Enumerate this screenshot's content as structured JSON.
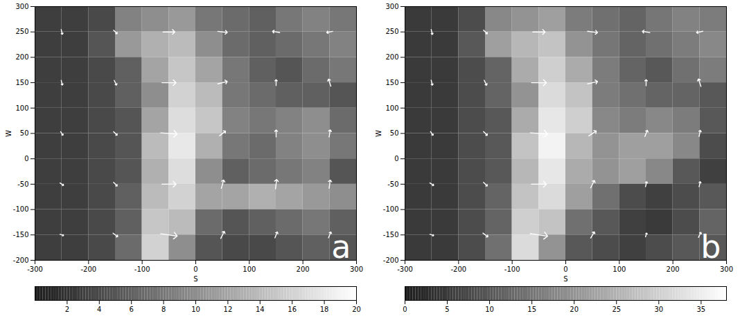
{
  "chart_data": [
    {
      "type": "heatmap",
      "panel": "a",
      "x_label": "S",
      "y_label": "W",
      "xlim": [
        -300,
        300
      ],
      "ylim": [
        -200,
        300
      ],
      "xticks": [
        -300,
        -200,
        -100,
        0,
        100,
        200,
        300
      ],
      "yticks": [
        -200,
        -150,
        -100,
        -50,
        0,
        50,
        100,
        150,
        200,
        250,
        300
      ],
      "cells": {
        "x": [
          -275,
          -225,
          -175,
          -125,
          -75,
          -25,
          25,
          75,
          125,
          175,
          225,
          275
        ],
        "y": [
          275,
          225,
          175,
          125,
          75,
          25,
          -25,
          -75,
          -125,
          -175
        ],
        "values": [
          [
            3,
            3,
            4,
            9,
            10,
            11,
            8,
            7,
            6,
            8,
            9,
            8
          ],
          [
            3,
            3,
            5,
            11,
            13,
            14,
            10,
            7,
            6,
            7,
            8,
            9
          ],
          [
            3,
            3,
            4,
            6,
            12,
            15,
            12,
            8,
            6,
            5,
            7,
            8
          ],
          [
            3,
            3,
            4,
            6,
            10,
            16,
            14,
            8,
            7,
            6,
            6,
            5
          ],
          [
            3,
            3,
            4,
            5,
            12,
            17,
            15,
            9,
            8,
            9,
            10,
            7
          ],
          [
            3,
            3,
            4,
            5,
            14,
            18,
            13,
            8,
            7,
            9,
            10,
            8
          ],
          [
            3,
            3,
            4,
            5,
            13,
            17,
            10,
            6,
            7,
            8,
            9,
            5
          ],
          [
            3,
            3,
            4,
            6,
            14,
            16,
            12,
            12,
            13,
            12,
            11,
            10
          ],
          [
            3,
            3,
            4,
            6,
            15,
            14,
            7,
            5,
            6,
            7,
            8,
            6
          ],
          [
            3,
            3,
            4,
            7,
            16,
            10,
            5,
            4,
            4,
            5,
            6,
            5
          ]
        ]
      },
      "vectors": {
        "color": "#ffffff",
        "x": [
          -250,
          -150,
          -50,
          50,
          150,
          250
        ],
        "y": [
          250,
          150,
          50,
          -50,
          -150
        ],
        "u": [
          [
            1,
            3,
            10,
            8,
            -6,
            -5
          ],
          [
            1,
            2,
            12,
            8,
            0,
            -2
          ],
          [
            2,
            3,
            14,
            5,
            0,
            1
          ],
          [
            3,
            3,
            12,
            2,
            1,
            1
          ],
          [
            3,
            4,
            14,
            3,
            2,
            2
          ]
        ],
        "v": [
          [
            -4,
            -3,
            0,
            -1,
            1,
            -1
          ],
          [
            -4,
            -4,
            0,
            2,
            5,
            6
          ],
          [
            -3,
            -3,
            -1,
            4,
            6,
            6
          ],
          [
            -2,
            -3,
            0,
            7,
            8,
            7
          ],
          [
            -1,
            -3,
            -2,
            6,
            5,
            5
          ]
        ]
      },
      "colorbar": {
        "lim": [
          0,
          20
        ],
        "ticks": [
          2,
          4,
          6,
          8,
          10,
          12,
          14,
          16,
          18,
          20
        ]
      }
    },
    {
      "type": "heatmap",
      "panel": "b",
      "x_label": "S",
      "y_label": "W",
      "xlim": [
        -300,
        300
      ],
      "ylim": [
        -200,
        300
      ],
      "xticks": [
        -300,
        -200,
        -100,
        0,
        100,
        200,
        300
      ],
      "yticks": [
        -200,
        -150,
        -100,
        -50,
        0,
        50,
        100,
        150,
        200,
        250,
        300
      ],
      "cells": {
        "x": [
          -275,
          -225,
          -175,
          -125,
          -75,
          -25,
          25,
          75,
          125,
          175,
          225,
          275
        ],
        "y": [
          275,
          225,
          175,
          125,
          75,
          25,
          -25,
          -75,
          -125,
          -175
        ],
        "values": [
          [
            5,
            5,
            8,
            18,
            20,
            22,
            16,
            14,
            12,
            15,
            17,
            16
          ],
          [
            5,
            5,
            10,
            22,
            26,
            28,
            20,
            15,
            12,
            14,
            16,
            18
          ],
          [
            5,
            5,
            8,
            12,
            24,
            30,
            24,
            16,
            12,
            10,
            14,
            16
          ],
          [
            5,
            5,
            8,
            12,
            20,
            32,
            28,
            16,
            14,
            12,
            12,
            10
          ],
          [
            5,
            5,
            8,
            10,
            24,
            34,
            30,
            18,
            16,
            18,
            16,
            10
          ],
          [
            5,
            5,
            8,
            10,
            28,
            36,
            26,
            20,
            22,
            22,
            18,
            8
          ],
          [
            5,
            5,
            8,
            10,
            26,
            34,
            24,
            20,
            22,
            18,
            10,
            6
          ],
          [
            5,
            5,
            8,
            12,
            28,
            32,
            22,
            14,
            8,
            6,
            8,
            10
          ],
          [
            5,
            5,
            8,
            12,
            30,
            28,
            14,
            10,
            6,
            5,
            8,
            12
          ],
          [
            5,
            5,
            8,
            14,
            32,
            20,
            10,
            8,
            6,
            8,
            10,
            10
          ]
        ]
      },
      "vectors": {
        "color": "#ffffff",
        "x": [
          -250,
          -150,
          -50,
          50,
          150,
          250
        ],
        "y": [
          250,
          150,
          50,
          -50,
          -150
        ],
        "u": [
          [
            2,
            6,
            20,
            16,
            -12,
            -10
          ],
          [
            2,
            4,
            24,
            16,
            0,
            -4
          ],
          [
            4,
            6,
            28,
            12,
            4,
            2
          ],
          [
            6,
            6,
            24,
            6,
            2,
            2
          ],
          [
            6,
            8,
            28,
            6,
            2,
            4
          ]
        ],
        "v": [
          [
            -8,
            -6,
            0,
            -2,
            2,
            -2
          ],
          [
            -8,
            -8,
            0,
            4,
            10,
            12
          ],
          [
            -6,
            -6,
            -2,
            8,
            10,
            10
          ],
          [
            -4,
            -6,
            0,
            12,
            8,
            8
          ],
          [
            -2,
            -6,
            -4,
            10,
            6,
            8
          ]
        ]
      },
      "colorbar": {
        "lim": [
          0,
          38
        ],
        "ticks": [
          0,
          5,
          10,
          15,
          20,
          25,
          30,
          35
        ]
      }
    }
  ]
}
